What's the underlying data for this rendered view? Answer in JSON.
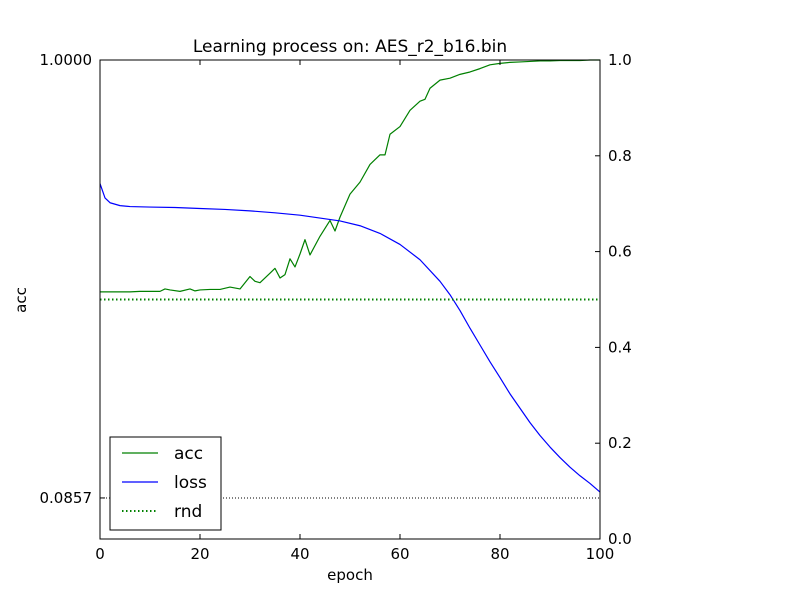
{
  "chart_data": {
    "type": "line",
    "title": "Learning process on: AES_r2_b16.bin",
    "xlabel": "epoch",
    "ylabel": "acc",
    "xlim": [
      0,
      100
    ],
    "ylim_left": [
      0,
      1
    ],
    "ylim_right": [
      0,
      1
    ],
    "left_ticks": [
      {
        "label": "1.0000",
        "value": 1.0
      },
      {
        "label": "0.0857",
        "value": 0.0857
      }
    ],
    "right_ticks": [
      "0.0",
      "0.2",
      "0.4",
      "0.6",
      "0.8",
      "1.0"
    ],
    "x_ticks": [
      "0",
      "20",
      "40",
      "60",
      "80",
      "100"
    ],
    "grid": false,
    "legend_position": "lower-left",
    "series": [
      {
        "name": "acc",
        "axis": "left",
        "color": "#008000",
        "style": "solid",
        "x": [
          0,
          2,
          4,
          6,
          8,
          10,
          12,
          13,
          14,
          16,
          18,
          19,
          20,
          22,
          24,
          26,
          28,
          30,
          31,
          32,
          34,
          35,
          36,
          37,
          38,
          39,
          40,
          41,
          42,
          44,
          46,
          47,
          48,
          50,
          52,
          54,
          56,
          57,
          58,
          60,
          62,
          64,
          65,
          66,
          68,
          70,
          72,
          74,
          76,
          78,
          80,
          82,
          84,
          86,
          88,
          90,
          92,
          94,
          96,
          98,
          100
        ],
        "y": [
          0.516,
          0.516,
          0.516,
          0.516,
          0.517,
          0.517,
          0.517,
          0.522,
          0.52,
          0.517,
          0.522,
          0.518,
          0.52,
          0.521,
          0.521,
          0.526,
          0.522,
          0.548,
          0.538,
          0.535,
          0.555,
          0.565,
          0.545,
          0.552,
          0.585,
          0.568,
          0.595,
          0.625,
          0.593,
          0.632,
          0.665,
          0.643,
          0.672,
          0.72,
          0.745,
          0.782,
          0.802,
          0.802,
          0.845,
          0.861,
          0.895,
          0.914,
          0.918,
          0.941,
          0.958,
          0.962,
          0.97,
          0.975,
          0.982,
          0.99,
          0.993,
          0.995,
          0.996,
          0.997,
          0.998,
          0.998,
          0.999,
          0.999,
          0.999,
          1.0,
          1.0
        ]
      },
      {
        "name": "loss",
        "axis": "right",
        "color": "#0000ff",
        "style": "solid",
        "x": [
          0,
          1,
          2,
          4,
          6,
          10,
          15,
          20,
          25,
          30,
          35,
          40,
          44,
          48,
          52,
          56,
          60,
          64,
          68,
          70,
          72,
          74,
          76,
          78,
          80,
          82,
          84,
          86,
          88,
          90,
          92,
          94,
          96,
          98,
          100
        ],
        "y": [
          0.742,
          0.712,
          0.702,
          0.696,
          0.694,
          0.693,
          0.692,
          0.69,
          0.688,
          0.685,
          0.681,
          0.676,
          0.67,
          0.664,
          0.654,
          0.638,
          0.615,
          0.583,
          0.538,
          0.51,
          0.477,
          0.44,
          0.405,
          0.37,
          0.337,
          0.303,
          0.273,
          0.243,
          0.216,
          0.192,
          0.17,
          0.15,
          0.132,
          0.116,
          0.098
        ]
      },
      {
        "name": "rnd",
        "axis": "left",
        "color": "#008000",
        "style": "dotted",
        "constant": 0.5
      },
      {
        "axis": "left",
        "color": "#000000",
        "style": "dotted",
        "constant": 0.0857
      }
    ]
  }
}
